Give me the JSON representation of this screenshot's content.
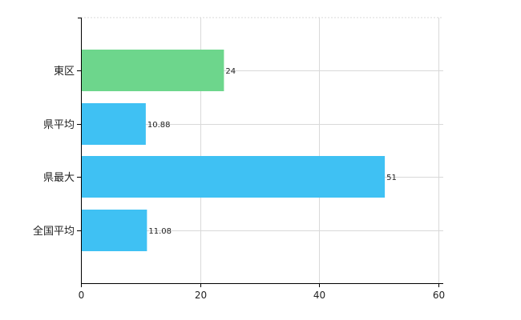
{
  "chart_data": {
    "type": "bar",
    "orientation": "horizontal",
    "categories": [
      "東区",
      "県平均",
      "県最大",
      "全国平均"
    ],
    "values": [
      24,
      10.88,
      51,
      11.08
    ],
    "value_labels": [
      "24",
      "10.88",
      "51",
      "11.08"
    ],
    "bar_colors": [
      "#6dd68c",
      "#3fc1f3",
      "#3fc1f3",
      "#3fc1f3"
    ],
    "xlim": [
      0,
      60
    ],
    "x_ticks": [
      0,
      20,
      40,
      60
    ],
    "x_tick_labels": [
      "0",
      "20",
      "40",
      "60"
    ],
    "grid": true,
    "grid_style": "dashed",
    "title": "",
    "xlabel": "",
    "ylabel": ""
  },
  "colors": {
    "axis": "#000000",
    "grid": "#d9d9d9",
    "highlight_bar": "#6dd68c",
    "default_bar": "#3fc1f3"
  }
}
